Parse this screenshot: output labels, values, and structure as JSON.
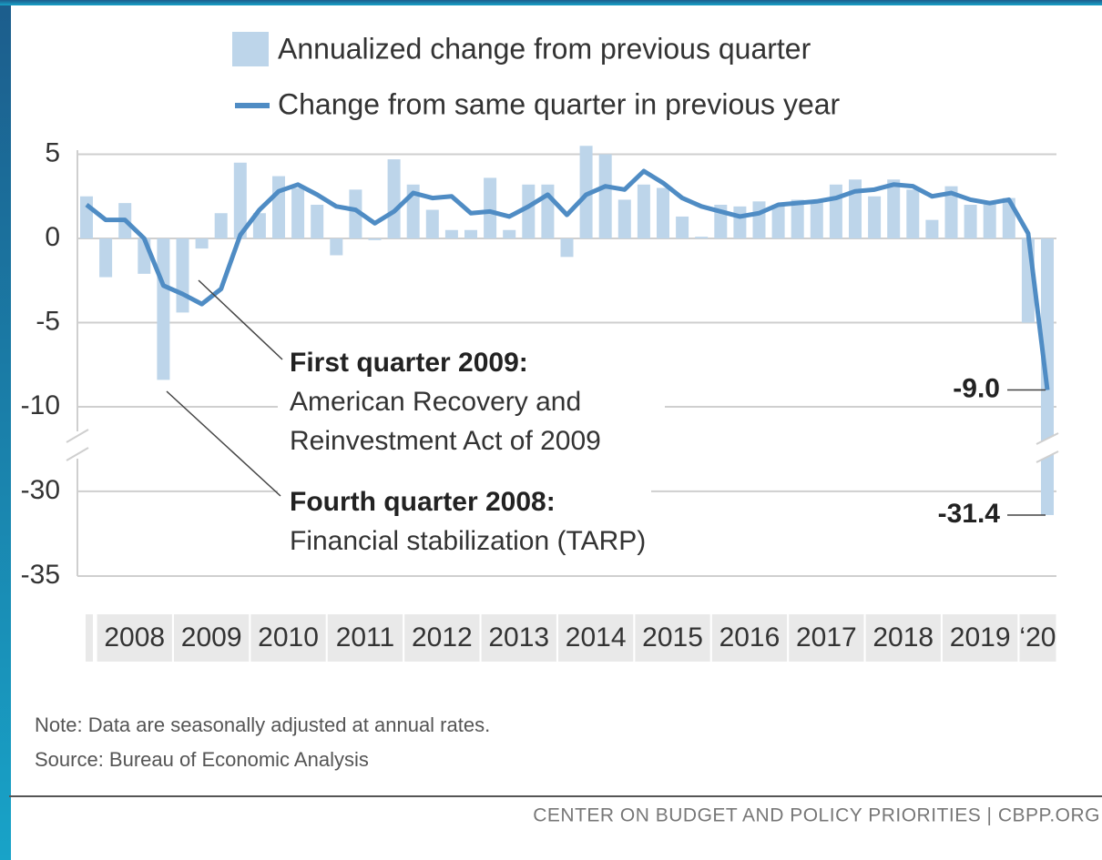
{
  "chart_data": {
    "type": "bar-line",
    "legend": [
      {
        "label": "Annualized change from previous quarter"
      },
      {
        "label": "Change from same quarter in previous year"
      }
    ],
    "ylim": [
      -35,
      5.5
    ],
    "axis_break": [
      -12,
      -27
    ],
    "yticks": [
      5,
      0,
      -5,
      -10,
      -30,
      -35
    ],
    "grid": true,
    "year_labels": [
      "2008",
      "2009",
      "2010",
      "2011",
      "2012",
      "2013",
      "2014",
      "2015",
      "2016",
      "2017",
      "2018",
      "2019",
      "‘20"
    ],
    "series": [
      {
        "name": "Annualized change from previous quarter",
        "type": "bar",
        "color": "#bdd5ea",
        "values": [
          2.5,
          -2.3,
          2.1,
          -2.1,
          -8.4,
          -4.4,
          -0.6,
          1.5,
          4.5,
          1.5,
          3.7,
          3.0,
          2.0,
          -1.0,
          2.9,
          -0.1,
          4.7,
          3.2,
          1.7,
          0.5,
          0.5,
          3.6,
          0.5,
          3.2,
          3.2,
          -1.1,
          5.5,
          5.0,
          2.3,
          3.2,
          3.0,
          1.3,
          0.1,
          2.0,
          1.9,
          2.2,
          2.0,
          2.3,
          2.2,
          3.2,
          3.5,
          2.5,
          3.5,
          2.9,
          1.1,
          3.1,
          2.0,
          2.1,
          2.4,
          -5.0,
          -31.4
        ],
        "value_labels": [
          null,
          null,
          null,
          null,
          null,
          null,
          null,
          null,
          null,
          null,
          null,
          null,
          null,
          null,
          null,
          null,
          null,
          null,
          null,
          null,
          null,
          null,
          null,
          null,
          null,
          null,
          null,
          null,
          null,
          null,
          null,
          null,
          null,
          null,
          null,
          null,
          null,
          null,
          null,
          null,
          null,
          null,
          null,
          null,
          null,
          null,
          null,
          null,
          null,
          null,
          "-31.4"
        ]
      },
      {
        "name": "Change from same quarter in previous year",
        "type": "line",
        "color": "#4f8cc4",
        "values": [
          2.0,
          1.1,
          1.1,
          0.0,
          -2.8,
          -3.3,
          -3.9,
          -3.0,
          0.2,
          1.7,
          2.8,
          3.2,
          2.6,
          1.9,
          1.7,
          0.9,
          1.6,
          2.7,
          2.4,
          2.5,
          1.5,
          1.6,
          1.3,
          1.9,
          2.6,
          1.4,
          2.6,
          3.1,
          2.9,
          4.0,
          3.3,
          2.4,
          1.9,
          1.6,
          1.3,
          1.5,
          2.0,
          2.1,
          2.2,
          2.4,
          2.8,
          2.9,
          3.2,
          3.1,
          2.5,
          2.7,
          2.3,
          2.1,
          2.3,
          0.3,
          -9.0
        ],
        "value_labels": [
          null,
          null,
          null,
          null,
          null,
          null,
          null,
          null,
          null,
          null,
          null,
          null,
          null,
          null,
          null,
          null,
          null,
          null,
          null,
          null,
          null,
          null,
          null,
          null,
          null,
          null,
          null,
          null,
          null,
          null,
          null,
          null,
          null,
          null,
          null,
          null,
          null,
          null,
          null,
          null,
          null,
          null,
          null,
          null,
          null,
          null,
          null,
          null,
          null,
          null,
          "-9.0"
        ]
      }
    ],
    "annotations": [
      {
        "title": "First quarter 2009:",
        "lines": [
          "American Recovery and",
          "Reinvestment Act of 2009"
        ]
      },
      {
        "title": "Fourth quarter 2008:",
        "lines": [
          "Financial stabilization (TARP)"
        ]
      }
    ],
    "note": "Note: Data are seasonally adjusted at annual rates.",
    "source": "Source: Bureau of Economic Analysis",
    "footer": "CENTER ON BUDGET AND POLICY PRIORITIES | CBPP.ORG"
  }
}
